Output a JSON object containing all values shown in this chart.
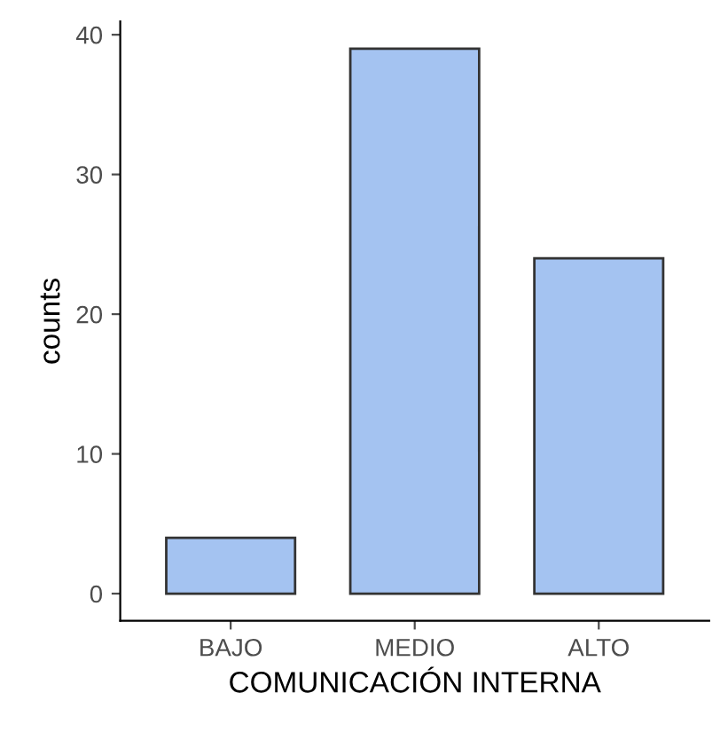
{
  "chart_data": {
    "type": "bar",
    "xlabel": "COMUNICACIÓN INTERNA",
    "ylabel": "counts",
    "categories": [
      "BAJO",
      "MEDIO",
      "ALTO"
    ],
    "values": [
      4,
      39,
      24
    ],
    "color": "#a4c3f1",
    "ylim": [
      -1.95,
      40.95
    ],
    "yticks": [
      0,
      10,
      20,
      30,
      40
    ],
    "grid": false
  }
}
